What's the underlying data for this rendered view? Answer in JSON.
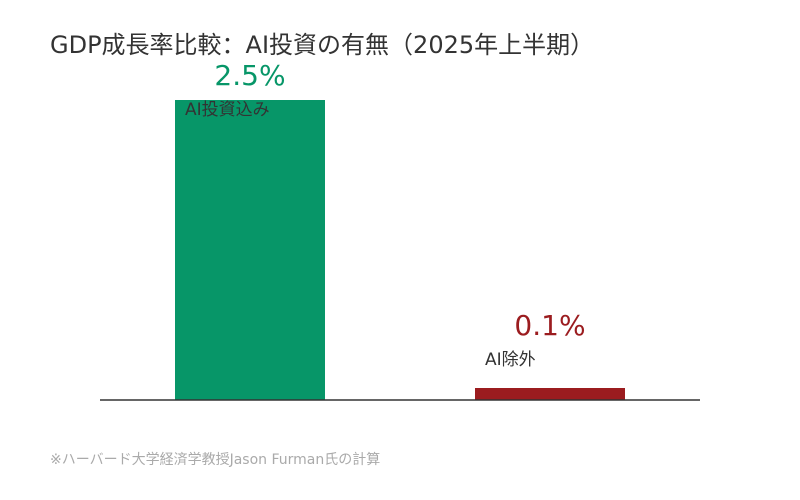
{
  "chart_data": {
    "type": "bar",
    "title": "GDP成長率比較：AI投資の有無（2025年上半期）",
    "categories": [
      "AI投資込み",
      "AI除外"
    ],
    "values": [
      2.5,
      0.1
    ],
    "value_labels": [
      "2.5%",
      "0.1%"
    ],
    "colors": [
      "#079668",
      "#9b1c1f"
    ],
    "ylim": [
      0,
      2.5
    ],
    "grid": false,
    "footnote": "※ハーバード大学経済学教授Jason Furman氏の計算"
  }
}
